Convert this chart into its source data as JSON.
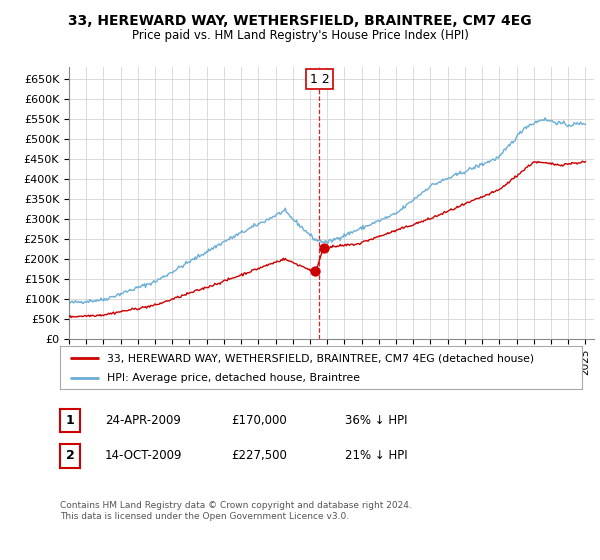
{
  "title": "33, HEREWARD WAY, WETHERSFIELD, BRAINTREE, CM7 4EG",
  "subtitle": "Price paid vs. HM Land Registry's House Price Index (HPI)",
  "ylabel_ticks": [
    "£0",
    "£50K",
    "£100K",
    "£150K",
    "£200K",
    "£250K",
    "£300K",
    "£350K",
    "£400K",
    "£450K",
    "£500K",
    "£550K",
    "£600K",
    "£650K"
  ],
  "ytick_values": [
    0,
    50000,
    100000,
    150000,
    200000,
    250000,
    300000,
    350000,
    400000,
    450000,
    500000,
    550000,
    600000,
    650000
  ],
  "ylim": [
    0,
    680000
  ],
  "sale1_date": 2009.31,
  "sale1_price": 170000,
  "sale2_date": 2009.79,
  "sale2_price": 227500,
  "hpi_color": "#6baed6",
  "sale_color": "#cc0000",
  "grid_color": "#cccccc",
  "bg_color": "#ffffff",
  "legend_label_red": "33, HEREWARD WAY, WETHERSFIELD, BRAINTREE, CM7 4EG (detached house)",
  "legend_label_blue": "HPI: Average price, detached house, Braintree",
  "table_row1": [
    "1",
    "24-APR-2009",
    "£170,000",
    "36% ↓ HPI"
  ],
  "table_row2": [
    "2",
    "14-OCT-2009",
    "£227,500",
    "21% ↓ HPI"
  ],
  "footnote": "Contains HM Land Registry data © Crown copyright and database right 2024.\nThis data is licensed under the Open Government Licence v3.0."
}
